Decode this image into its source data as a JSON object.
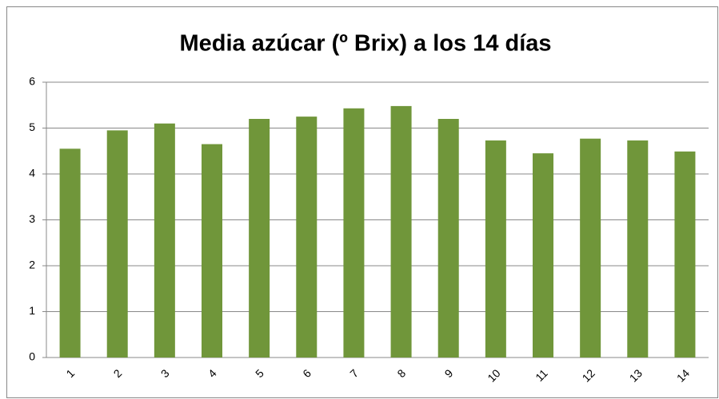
{
  "chart_data": {
    "type": "bar",
    "title": "Media azúcar (º Brix) a los 14 días",
    "categories": [
      "1",
      "2",
      "3",
      "4",
      "5",
      "6",
      "7",
      "8",
      "9",
      "10",
      "11",
      "12",
      "13",
      "14"
    ],
    "values": [
      4.55,
      4.95,
      5.1,
      4.65,
      5.2,
      5.25,
      5.43,
      5.48,
      5.2,
      4.73,
      4.45,
      4.77,
      4.73,
      4.49
    ],
    "color": "#70963a",
    "ylim": [
      0,
      6
    ],
    "yticks": [
      0,
      1,
      2,
      3,
      4,
      5,
      6
    ],
    "grid": true
  }
}
